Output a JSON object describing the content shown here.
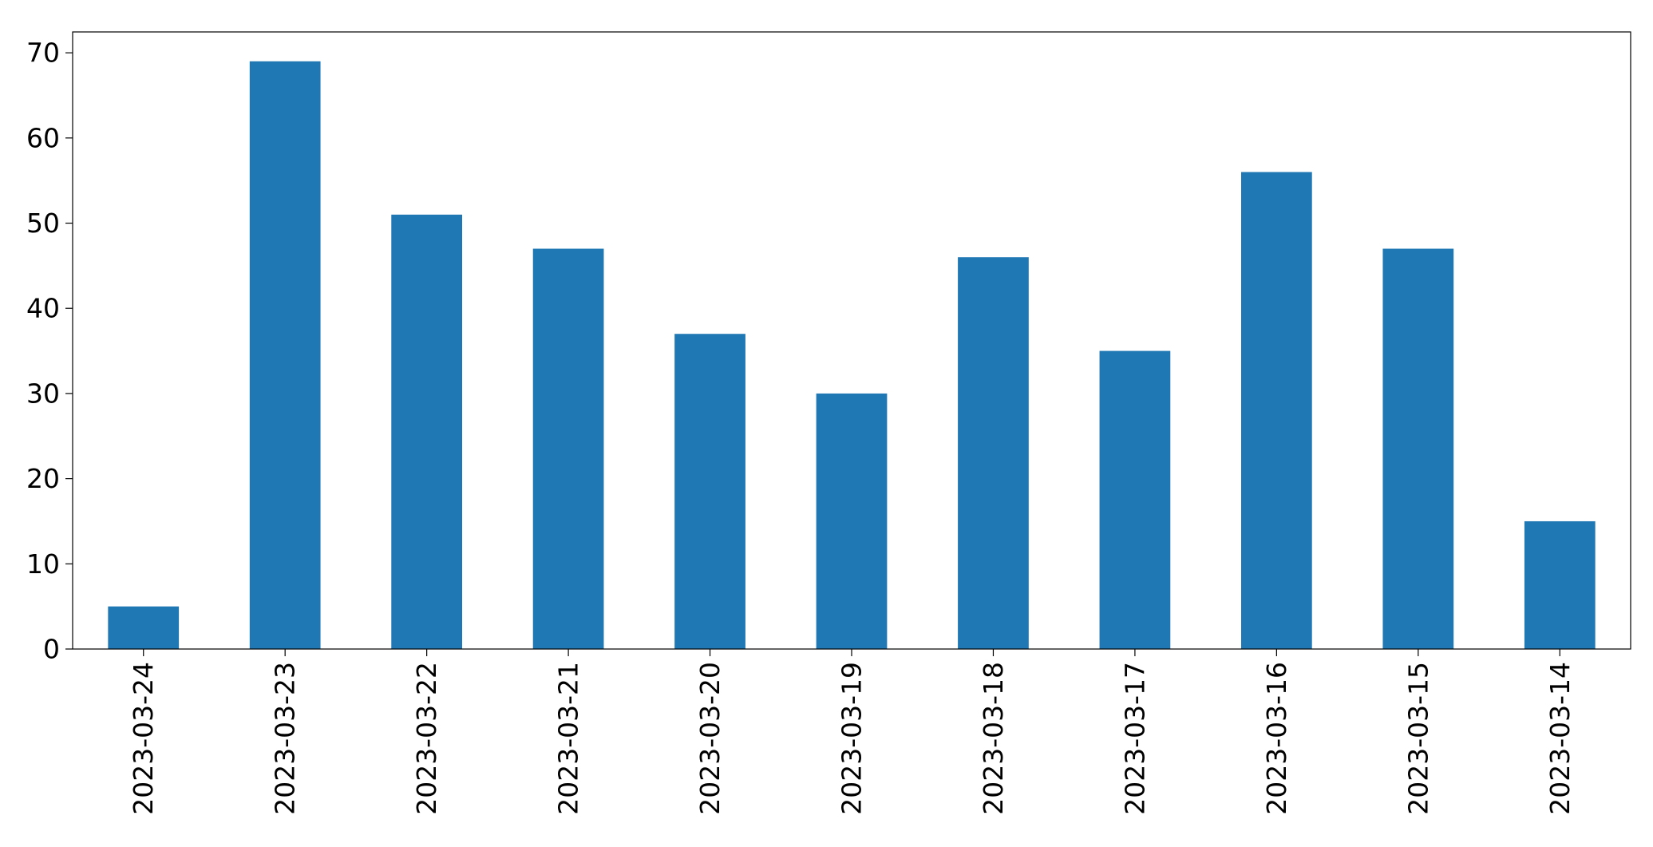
{
  "chart_data": {
    "type": "bar",
    "title": "",
    "xlabel": "",
    "ylabel": "",
    "categories": [
      "2023-03-24",
      "2023-03-23",
      "2023-03-22",
      "2023-03-21",
      "2023-03-20",
      "2023-03-19",
      "2023-03-18",
      "2023-03-17",
      "2023-03-16",
      "2023-03-15",
      "2023-03-14"
    ],
    "values": [
      5,
      69,
      51,
      47,
      37,
      30,
      46,
      35,
      56,
      47,
      15
    ],
    "ylim": [
      0,
      72.45
    ],
    "yticks": [
      0,
      10,
      20,
      30,
      40,
      50,
      60,
      70
    ],
    "ytick_labels": [
      "0",
      "10",
      "20",
      "30",
      "40",
      "50",
      "60",
      "70"
    ],
    "bar_color": "#1f77b4",
    "grid": false,
    "legend": "none"
  }
}
